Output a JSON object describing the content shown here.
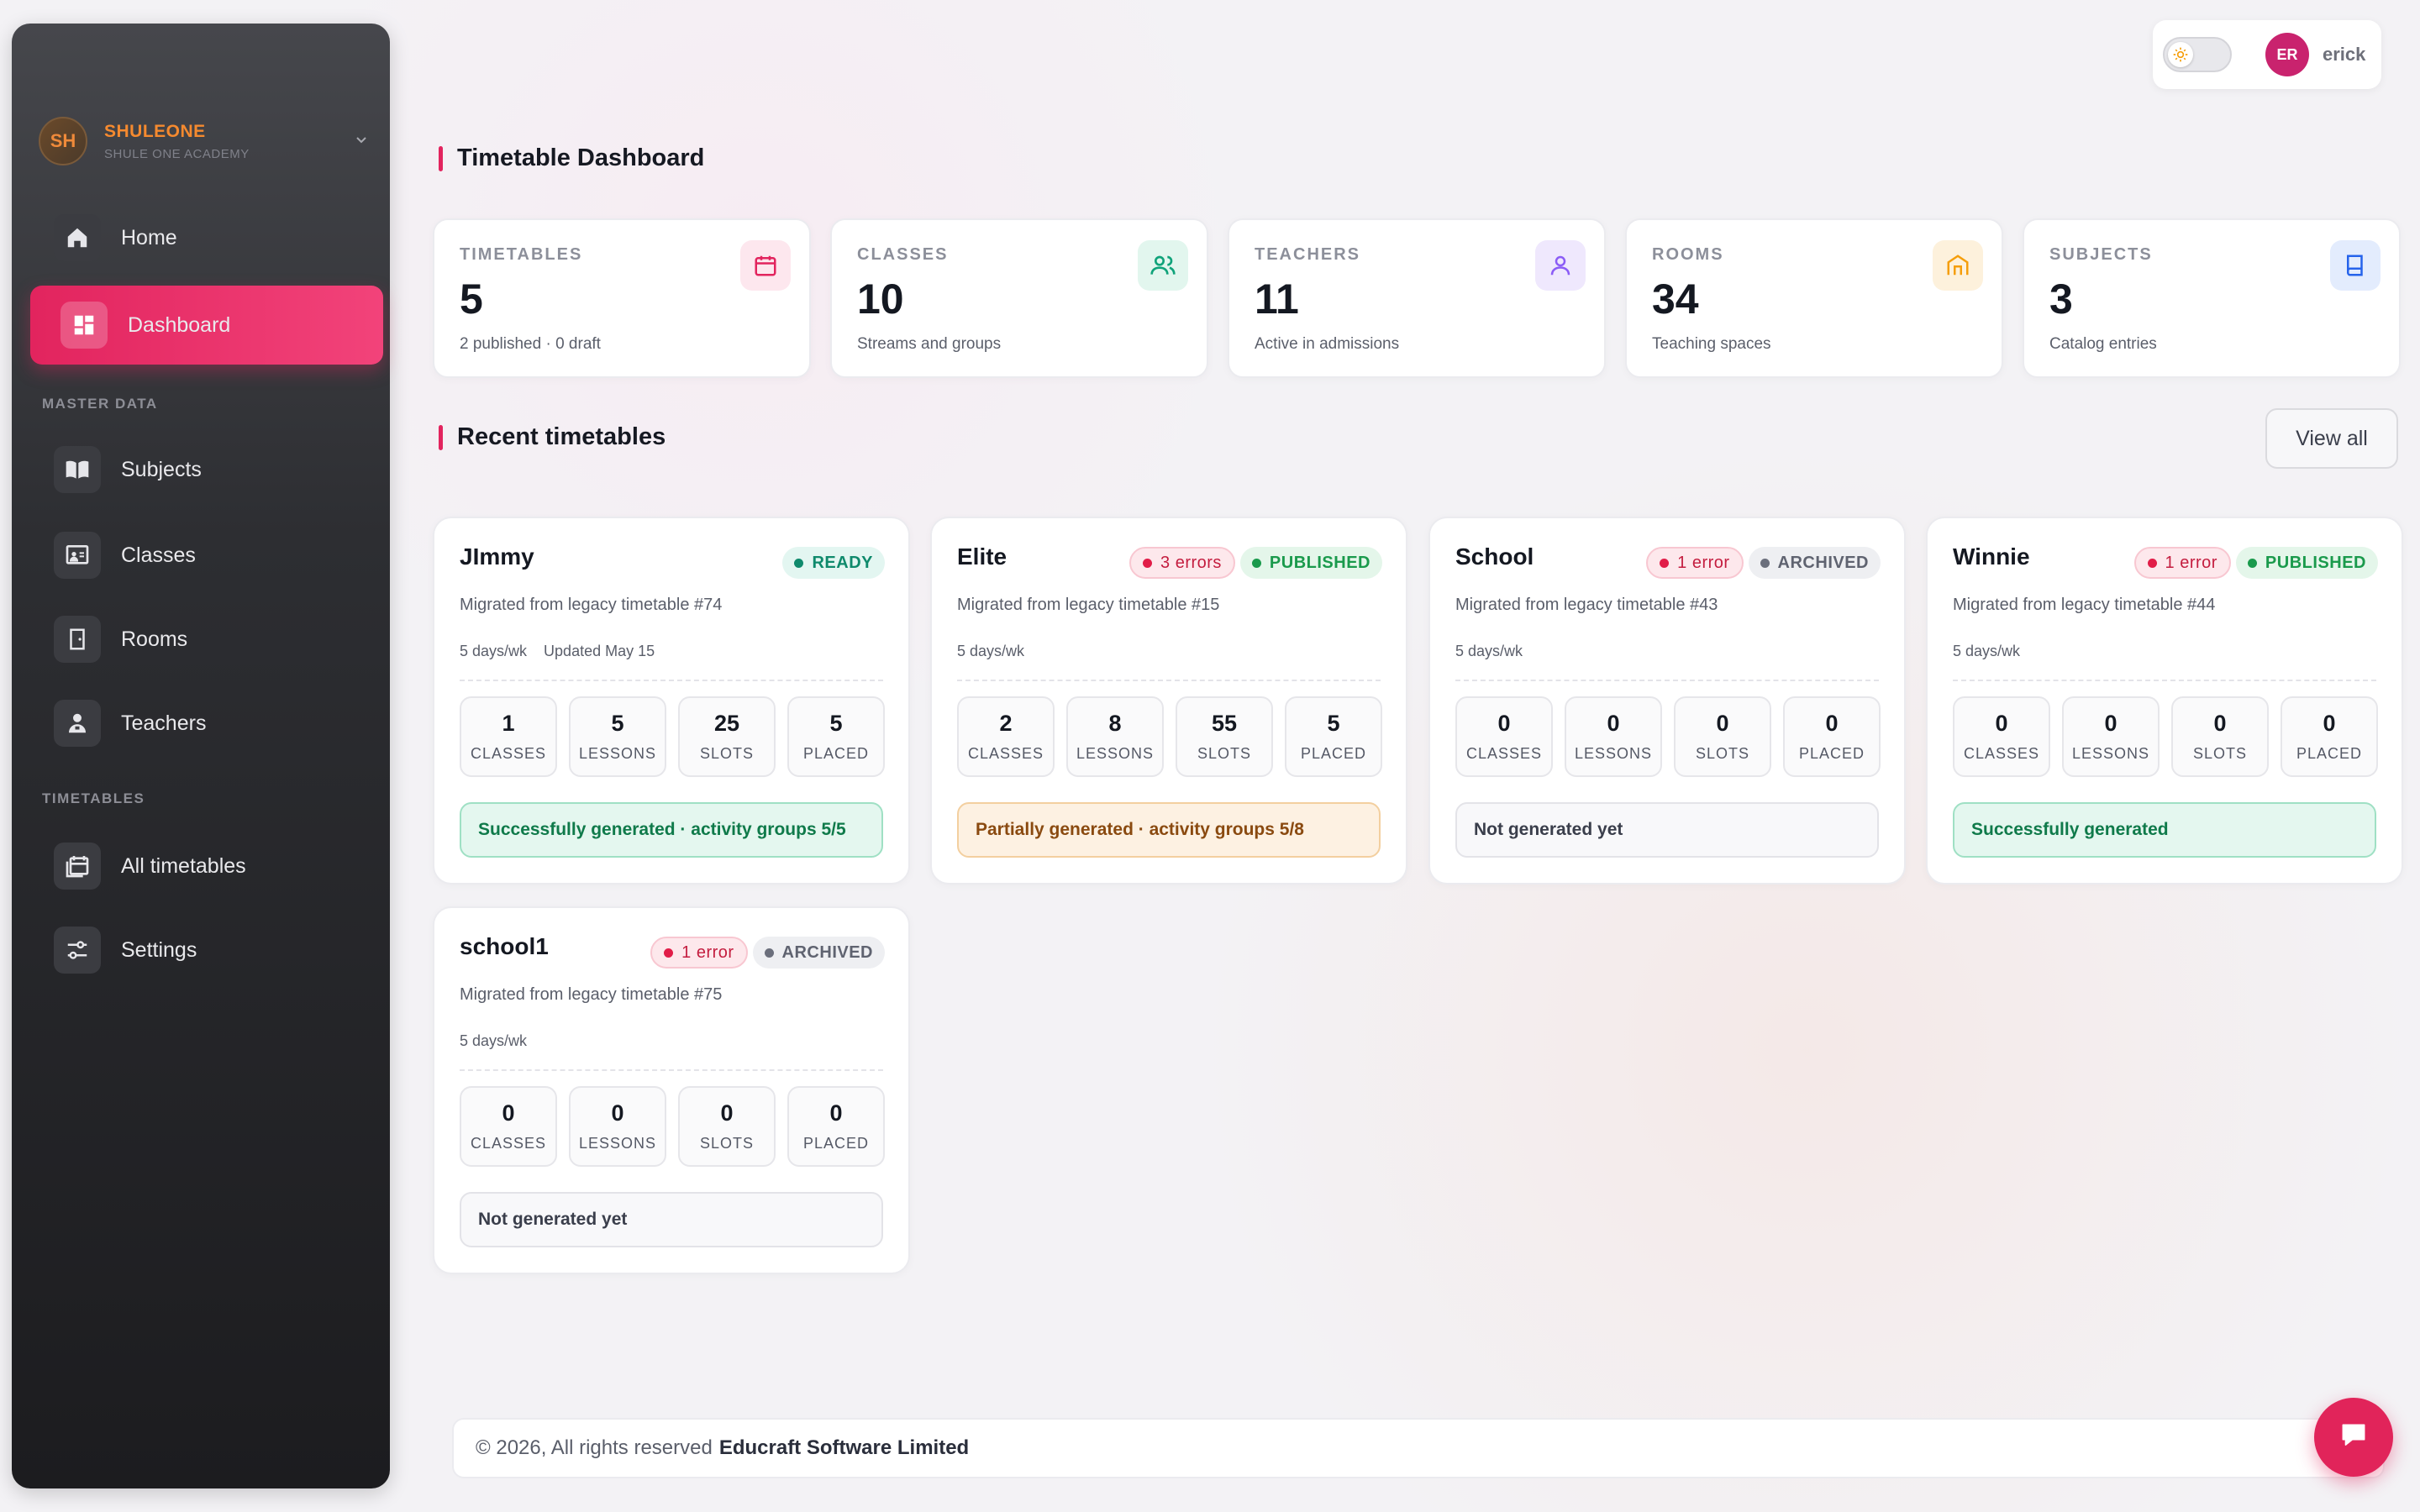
{
  "brand": {
    "initials": "SH",
    "name": "SHULEONE",
    "subtitle": "SHULE ONE ACADEMY"
  },
  "sidebar": {
    "items": [
      {
        "label": "Home",
        "icon": "home-icon"
      },
      {
        "label": "Dashboard",
        "icon": "dashboard-icon",
        "active": true
      },
      {
        "label": "Subjects",
        "icon": "book-open-icon"
      },
      {
        "label": "Classes",
        "icon": "classroom-icon"
      },
      {
        "label": "Rooms",
        "icon": "door-icon"
      },
      {
        "label": "Teachers",
        "icon": "teacher-icon"
      },
      {
        "label": "All timetables",
        "icon": "calendar-stack-icon"
      },
      {
        "label": "Settings",
        "icon": "sliders-icon"
      }
    ],
    "sections": {
      "master_data": "MASTER DATA",
      "timetables": "TIMETABLES"
    }
  },
  "user": {
    "initials": "ER",
    "name": "erick",
    "theme_toggle_icon": "sun-icon"
  },
  "page": {
    "title": "Timetable Dashboard",
    "recent_title": "Recent timetables",
    "view_all": "View all"
  },
  "stats": [
    {
      "label": "TIMETABLES",
      "value": "5",
      "sub": "2 published · 0 draft",
      "icon": "calendar-icon",
      "color": "#e2245e"
    },
    {
      "label": "CLASSES",
      "value": "10",
      "sub": "Streams and groups",
      "icon": "users-icon",
      "color": "#10a37a"
    },
    {
      "label": "TEACHERS",
      "value": "11",
      "sub": "Active in admissions",
      "icon": "user-icon",
      "color": "#8b5cf6"
    },
    {
      "label": "ROOMS",
      "value": "34",
      "sub": "Teaching spaces",
      "icon": "building-icon",
      "color": "#f59e0b"
    },
    {
      "label": "SUBJECTS",
      "value": "3",
      "sub": "Catalog entries",
      "icon": "book-icon",
      "color": "#2563eb"
    }
  ],
  "stat_labels": {
    "classes": "CLASSES",
    "lessons": "LESSONS",
    "slots": "SLOTS",
    "placed": "PLACED"
  },
  "timetables": [
    {
      "name": "JImmy",
      "error_badge": "",
      "status_badge": "READY",
      "desc": "Migrated from legacy timetable #74",
      "days": "5 days/wk",
      "updated": "Updated May 15",
      "classes": "1",
      "lessons": "5",
      "slots": "25",
      "placed": "5",
      "status_text": "Successfully generated · activity groups 5/5"
    },
    {
      "name": "Elite",
      "error_badge": "3 errors",
      "status_badge": "PUBLISHED",
      "desc": "Migrated from legacy timetable #15",
      "days": "5 days/wk",
      "updated": "",
      "classes": "2",
      "lessons": "8",
      "slots": "55",
      "placed": "5",
      "status_text": "Partially generated · activity groups 5/8"
    },
    {
      "name": "School",
      "error_badge": "1 error",
      "status_badge": "ARCHIVED",
      "desc": "Migrated from legacy timetable #43",
      "days": "5 days/wk",
      "updated": "",
      "classes": "0",
      "lessons": "0",
      "slots": "0",
      "placed": "0",
      "status_text": "Not generated yet"
    },
    {
      "name": "Winnie",
      "error_badge": "1 error",
      "status_badge": "PUBLISHED",
      "desc": "Migrated from legacy timetable #44",
      "days": "5 days/wk",
      "updated": "",
      "classes": "0",
      "lessons": "0",
      "slots": "0",
      "placed": "0",
      "status_text": "Successfully generated"
    },
    {
      "name": "school1",
      "error_badge": "1 error",
      "status_badge": "ARCHIVED",
      "desc": "Migrated from legacy timetable #75",
      "days": "5 days/wk",
      "updated": "",
      "classes": "0",
      "lessons": "0",
      "slots": "0",
      "placed": "0",
      "status_text": "Not generated yet"
    }
  ],
  "footer": {
    "copyright": "© 2026, All rights reserved",
    "company": "Educraft Software Limited"
  },
  "chat": {
    "icon": "chat-bubble-icon"
  }
}
